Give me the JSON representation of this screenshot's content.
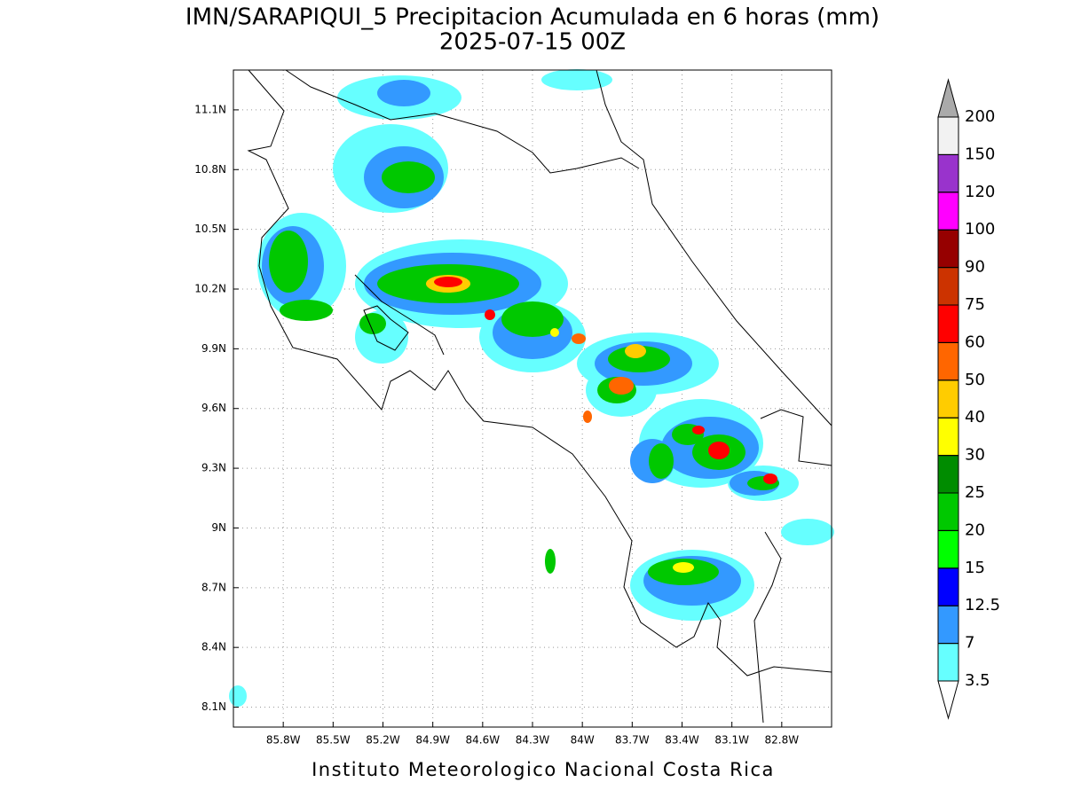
{
  "map": {
    "title": "IMN/SARAPIQUI_5 Precipitacion Acumulada en 6 horas (mm)",
    "subtitle": "2025-07-15 00Z",
    "footer": "Instituto Meteorologico Nacional Costa Rica",
    "xlim": [
      -86.1,
      -82.5
    ],
    "ylim": [
      8.0,
      11.3
    ],
    "xticks": [
      {
        "value": -85.8,
        "label": "85.8W"
      },
      {
        "value": -85.5,
        "label": "85.5W"
      },
      {
        "value": -85.2,
        "label": "85.2W"
      },
      {
        "value": -84.9,
        "label": "84.9W"
      },
      {
        "value": -84.6,
        "label": "84.6W"
      },
      {
        "value": -84.3,
        "label": "84.3W"
      },
      {
        "value": -84.0,
        "label": "84W"
      },
      {
        "value": -83.7,
        "label": "83.7W"
      },
      {
        "value": -83.4,
        "label": "83.4W"
      },
      {
        "value": -83.1,
        "label": "83.1W"
      },
      {
        "value": -82.8,
        "label": "82.8W"
      }
    ],
    "yticks": [
      {
        "value": 8.1,
        "label": "8.1N"
      },
      {
        "value": 8.4,
        "label": "8.4N"
      },
      {
        "value": 8.7,
        "label": "8.7N"
      },
      {
        "value": 9.0,
        "label": "9N"
      },
      {
        "value": 9.3,
        "label": "9.3N"
      },
      {
        "value": 9.6,
        "label": "9.6N"
      },
      {
        "value": 9.9,
        "label": "9.9N"
      },
      {
        "value": 10.2,
        "label": "10.2N"
      },
      {
        "value": 10.5,
        "label": "10.5N"
      },
      {
        "value": 10.8,
        "label": "10.8N"
      },
      {
        "value": 11.1,
        "label": "11.1N"
      }
    ],
    "grid": true,
    "colorbar": {
      "levels": [
        3.5,
        7,
        12.5,
        15,
        20,
        25,
        30,
        40,
        50,
        60,
        75,
        90,
        100,
        120,
        150,
        200
      ],
      "colors": [
        "#66ffff",
        "#3399ff",
        "#0000ff",
        "#00ff00",
        "#00c800",
        "#008c00",
        "#ffff00",
        "#ffcc00",
        "#ff6600",
        "#ff0000",
        "#cc3300",
        "#960000",
        "#ff00ff",
        "#9933cc",
        "#f2f2f2"
      ],
      "under_color": "#ffffff",
      "over_color": "#aaaaaa"
    }
  }
}
